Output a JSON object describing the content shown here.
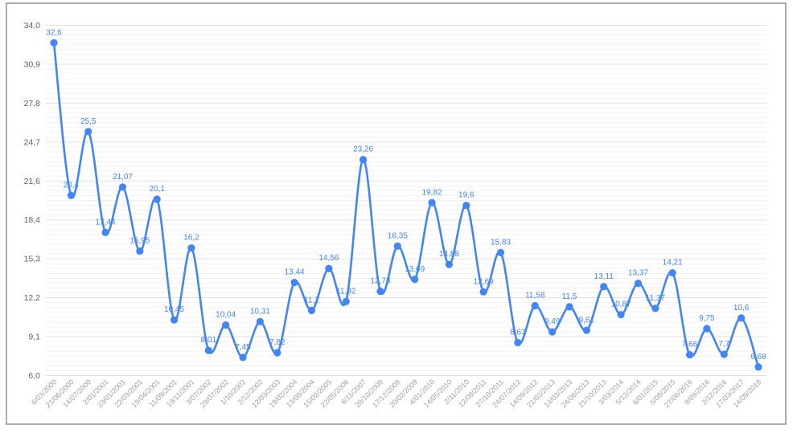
{
  "chart_data": {
    "type": "line",
    "smooth": true,
    "title": "",
    "xlabel": "",
    "ylabel": "",
    "legend": "none",
    "grid": "horizontal major + minor",
    "ylim": [
      6,
      34
    ],
    "y_tick_labels": [
      "34,0",
      "30,9",
      "27,8",
      "24,7",
      "21,6",
      "18,4",
      "15,3",
      "12,2",
      "9,1",
      "6,0"
    ],
    "categories": [
      "6/03/2000",
      "21/06/2000",
      "14/07/2000",
      "2/01/2001",
      "23/01/2001",
      "22/03/2001",
      "19/04/2001",
      "11/09/2001",
      "19/11/2001",
      "3/07/2002",
      "29/07/2002",
      "1/10/2002",
      "2/12/2002",
      "12/03/2003",
      "19/02/2004",
      "13/08/2004",
      "15/02/2005",
      "22/05/2006",
      "6/11/2007",
      "28/10/2008",
      "17/12/2008",
      "20/02/2009",
      "4/01/2010",
      "14/05/2010",
      "2/11/2010",
      "12/09/2011",
      "27/10/2011",
      "24/07/2012",
      "14/09/2012",
      "21/02/2013",
      "14/03/2013",
      "24/06/2013",
      "21/10/2013",
      "3/03/2014",
      "5/12/2014",
      "6/01/2015",
      "5/08/2015",
      "27/06/2016",
      "8/09/2016",
      "2/12/2016",
      "17/03/2017",
      "14/09/2018"
    ],
    "series": [
      {
        "name": "values",
        "values": [
          32.6,
          20.4,
          25.5,
          17.44,
          21.07,
          15.95,
          20.1,
          10.45,
          16.2,
          8.01,
          10.04,
          7.45,
          10.31,
          7.82,
          13.44,
          11.2,
          14.56,
          11.92,
          23.26,
          12.73,
          16.35,
          13.69,
          19.82,
          14.88,
          19.6,
          12.69,
          15.83,
          8.63,
          11.58,
          9.49,
          11.5,
          9.61,
          13.11,
          10.87,
          13.37,
          11.37,
          14.21,
          7.66,
          9.75,
          7.7,
          10.6,
          6.68
        ]
      }
    ],
    "point_labels": [
      "32,6",
      "20,4",
      "25,5",
      "17,44",
      "21,07",
      "15,95",
      "20,1",
      "10,45",
      "16,2",
      "8,01",
      "10,04",
      "7,45",
      "10,31",
      "7,82",
      "13,44",
      "11,2",
      "14,56",
      "11,92",
      "23,26",
      "12,73",
      "16,35",
      "13,69",
      "19,82",
      "14,88",
      "19,6",
      "12,69",
      "15,83",
      "8,63",
      "11,58",
      "9,49",
      "11,5",
      "9,61",
      "13,11",
      "10,87",
      "13,37",
      "11,37",
      "14,21",
      "7,66",
      "9,75",
      "7,7",
      "10,6",
      "6,68"
    ],
    "colors": {
      "line": "#4285f4",
      "point": "#4285f4",
      "point_label": "#4285f4",
      "y_tick_text": "#616161",
      "x_tick_text": "#9e9e9e",
      "grid_major": "#e0e0e0",
      "grid_minor": "#f3f3f3",
      "frame_border": "#909090",
      "background": "#ffffff"
    }
  }
}
